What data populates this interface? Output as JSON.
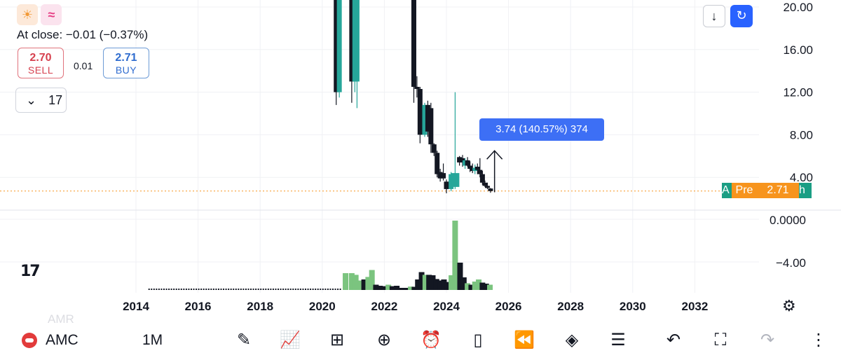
{
  "header": {
    "icons": [
      "sun-icon",
      "wave-icon"
    ],
    "at_close": "At close:  −0.01 (−0.37%)",
    "sell": {
      "price": "2.70",
      "label": "SELL"
    },
    "spread": "0.01",
    "buy": {
      "price": "2.71",
      "label": "BUY"
    },
    "collapse_count": "17"
  },
  "toolbar_top": {
    "down_icon": "↓",
    "sync_icon": "↻"
  },
  "measure": {
    "text": "3.74 (140.57%) 374"
  },
  "price_line": {
    "prefix": "A",
    "pre_label": "Pre",
    "price": "2.71",
    "suffix": "h"
  },
  "bottom_bar": {
    "symbol": "AMC",
    "interval": "1M",
    "ghost_text": "AMR",
    "tools": [
      "pen-icon",
      "indicators-icon",
      "grid-icon",
      "add-icon",
      "alarm-icon",
      "candle-icon",
      "replay-icon",
      "layers-icon",
      "settings-sliders-icon",
      "undo-icon",
      "fullscreen-icon",
      "redo-icon",
      "more-icon"
    ]
  },
  "colors": {
    "up": "#26a69a",
    "down": "#131722",
    "vol_up": "#7bc47f",
    "vol_down": "#131722",
    "accent": "#2962ff",
    "price_line": "#f7941d"
  },
  "chart_data": {
    "type": "candlestick",
    "y_axis": {
      "ticks": [
        "20.00",
        "16.00",
        "12.00",
        "8.00",
        "4.00"
      ],
      "range": [
        1.8,
        21
      ]
    },
    "volume_axis": {
      "ticks": [
        "0.0000",
        "−4.00"
      ]
    },
    "x_axis": {
      "ticks": [
        "2014",
        "2016",
        "2018",
        "2020",
        "2022",
        "2024",
        "2026",
        "2028",
        "2030",
        "2032"
      ]
    },
    "candles": [
      {
        "t": 2020.45,
        "o": 24,
        "h": 24,
        "l": 10.8,
        "c": 12,
        "dir": "down"
      },
      {
        "t": 2020.55,
        "o": 12,
        "h": 24,
        "l": 11.5,
        "c": 24,
        "dir": "up"
      },
      {
        "t": 2020.95,
        "o": 24,
        "h": 24,
        "l": 11,
        "c": 13,
        "dir": "down"
      },
      {
        "t": 2021.05,
        "o": 13,
        "h": 24,
        "l": 12,
        "c": 22,
        "dir": "up"
      },
      {
        "t": 2021.12,
        "o": 22,
        "h": 24,
        "l": 10.5,
        "c": 13,
        "dir": "up"
      },
      {
        "t": 2022.95,
        "o": 24,
        "h": 24,
        "l": 11,
        "c": 12.5,
        "dir": "down"
      },
      {
        "t": 2023.05,
        "o": 12.5,
        "h": 13.5,
        "l": 11.5,
        "c": 12.3,
        "dir": "down"
      },
      {
        "t": 2023.15,
        "o": 12.3,
        "h": 12.5,
        "l": 7.2,
        "c": 8,
        "dir": "down"
      },
      {
        "t": 2023.3,
        "o": 8,
        "h": 11,
        "l": 7.8,
        "c": 10.8,
        "dir": "up"
      },
      {
        "t": 2023.4,
        "o": 10.8,
        "h": 11.2,
        "l": 7.8,
        "c": 8.3,
        "dir": "down"
      },
      {
        "t": 2023.5,
        "o": 10.5,
        "h": 11,
        "l": 6.3,
        "c": 7.1,
        "dir": "down"
      },
      {
        "t": 2023.6,
        "o": 7.1,
        "h": 7.2,
        "l": 6,
        "c": 6.3,
        "dir": "down"
      },
      {
        "t": 2023.7,
        "o": 6.3,
        "h": 6.5,
        "l": 4,
        "c": 4.3,
        "dir": "down"
      },
      {
        "t": 2023.8,
        "o": 4.5,
        "h": 4.8,
        "l": 3.6,
        "c": 3.9,
        "dir": "down"
      },
      {
        "t": 2023.9,
        "o": 4.4,
        "h": 5.3,
        "l": 3.7,
        "c": 3.9,
        "dir": "down"
      },
      {
        "t": 2024.0,
        "o": 3.6,
        "h": 3.8,
        "l": 2.5,
        "c": 2.9,
        "dir": "down"
      },
      {
        "t": 2024.15,
        "o": 2.9,
        "h": 4.5,
        "l": 2.7,
        "c": 4.3,
        "dir": "up"
      },
      {
        "t": 2024.28,
        "o": 3.1,
        "h": 12,
        "l": 2.9,
        "c": 4.4,
        "dir": "up"
      },
      {
        "t": 2024.42,
        "o": 5.4,
        "h": 6,
        "l": 5.1,
        "c": 5.9,
        "dir": "down"
      },
      {
        "t": 2024.52,
        "o": 5.8,
        "h": 6.1,
        "l": 5,
        "c": 5.4,
        "dir": "down"
      },
      {
        "t": 2024.6,
        "o": 5.1,
        "h": 5.8,
        "l": 4.8,
        "c": 5.6,
        "dir": "up"
      },
      {
        "t": 2024.68,
        "o": 5.6,
        "h": 5.9,
        "l": 5,
        "c": 5.1,
        "dir": "down"
      },
      {
        "t": 2024.76,
        "o": 5.1,
        "h": 5.5,
        "l": 4.5,
        "c": 4.8,
        "dir": "down"
      },
      {
        "t": 2024.84,
        "o": 4.8,
        "h": 5.3,
        "l": 4.4,
        "c": 4.6,
        "dir": "down"
      },
      {
        "t": 2024.92,
        "o": 4.6,
        "h": 5.2,
        "l": 4.3,
        "c": 4.9,
        "dir": "up"
      },
      {
        "t": 2025.0,
        "o": 5,
        "h": 5.3,
        "l": 4.3,
        "c": 4.7,
        "dir": "down"
      },
      {
        "t": 2025.08,
        "o": 4.7,
        "h": 5.8,
        "l": 4,
        "c": 4.3,
        "dir": "down"
      },
      {
        "t": 2025.16,
        "o": 4.3,
        "h": 4.6,
        "l": 3.3,
        "c": 3.5,
        "dir": "down"
      },
      {
        "t": 2025.24,
        "o": 3.5,
        "h": 3.7,
        "l": 3.1,
        "c": 3.2,
        "dir": "down"
      },
      {
        "t": 2025.32,
        "o": 3.2,
        "h": 3.5,
        "l": 2.9,
        "c": 3.0,
        "dir": "down"
      },
      {
        "t": 2025.42,
        "o": 2.95,
        "h": 3.0,
        "l": 2.55,
        "c": 2.71,
        "dir": "down"
      }
    ],
    "volume": [
      {
        "t": 2020.75,
        "v": 0.8,
        "dir": "up"
      },
      {
        "t": 2020.95,
        "v": 0.8,
        "dir": "up"
      },
      {
        "t": 2021.08,
        "v": 0.72,
        "dir": "up"
      },
      {
        "t": 2021.22,
        "v": 0.45,
        "dir": "up"
      },
      {
        "t": 2021.35,
        "v": 0.5,
        "dir": "down"
      },
      {
        "t": 2021.48,
        "v": 0.62,
        "dir": "up"
      },
      {
        "t": 2021.6,
        "v": 0.95,
        "dir": "up"
      },
      {
        "t": 2021.73,
        "v": 0.25,
        "dir": "down"
      },
      {
        "t": 2021.86,
        "v": 0.2,
        "dir": "down"
      },
      {
        "t": 2022.0,
        "v": 0.18,
        "dir": "down"
      },
      {
        "t": 2022.13,
        "v": 0.25,
        "dir": "up"
      },
      {
        "t": 2022.26,
        "v": 0.18,
        "dir": "down"
      },
      {
        "t": 2022.4,
        "v": 0.2,
        "dir": "down"
      },
      {
        "t": 2022.55,
        "v": 0.1,
        "dir": "down"
      },
      {
        "t": 2022.7,
        "v": 0.1,
        "dir": "down"
      },
      {
        "t": 2022.85,
        "v": 0.16,
        "dir": "up"
      },
      {
        "t": 2022.97,
        "v": 0.15,
        "dir": "down"
      },
      {
        "t": 2023.08,
        "v": 0.5,
        "dir": "down"
      },
      {
        "t": 2023.2,
        "v": 0.85,
        "dir": "down"
      },
      {
        "t": 2023.32,
        "v": 0.72,
        "dir": "up"
      },
      {
        "t": 2023.44,
        "v": 0.72,
        "dir": "down"
      },
      {
        "t": 2023.56,
        "v": 0.7,
        "dir": "down"
      },
      {
        "t": 2023.68,
        "v": 0.52,
        "dir": "down"
      },
      {
        "t": 2023.8,
        "v": 0.45,
        "dir": "down"
      },
      {
        "t": 2023.92,
        "v": 0.5,
        "dir": "down"
      },
      {
        "t": 2024.04,
        "v": 0.38,
        "dir": "down"
      },
      {
        "t": 2024.16,
        "v": 0.7,
        "dir": "up"
      },
      {
        "t": 2024.28,
        "v": 3.3,
        "dir": "up"
      },
      {
        "t": 2024.44,
        "v": 1.3,
        "dir": "down"
      },
      {
        "t": 2024.56,
        "v": 0.6,
        "dir": "down"
      },
      {
        "t": 2024.68,
        "v": 0.32,
        "dir": "up"
      },
      {
        "t": 2024.8,
        "v": 0.25,
        "dir": "down"
      },
      {
        "t": 2024.92,
        "v": 0.4,
        "dir": "up"
      },
      {
        "t": 2025.04,
        "v": 0.5,
        "dir": "up"
      },
      {
        "t": 2025.16,
        "v": 0.35,
        "dir": "down"
      },
      {
        "t": 2025.28,
        "v": 0.3,
        "dir": "down"
      },
      {
        "t": 2025.4,
        "v": 0.25,
        "dir": "up"
      }
    ],
    "volume_baseline_from": 2014.4,
    "volume_baseline_to": 2020.6,
    "current_price": 2.71,
    "measure_arrow": {
      "t": 2025.55,
      "from": 2.6,
      "to": 6.5
    }
  }
}
